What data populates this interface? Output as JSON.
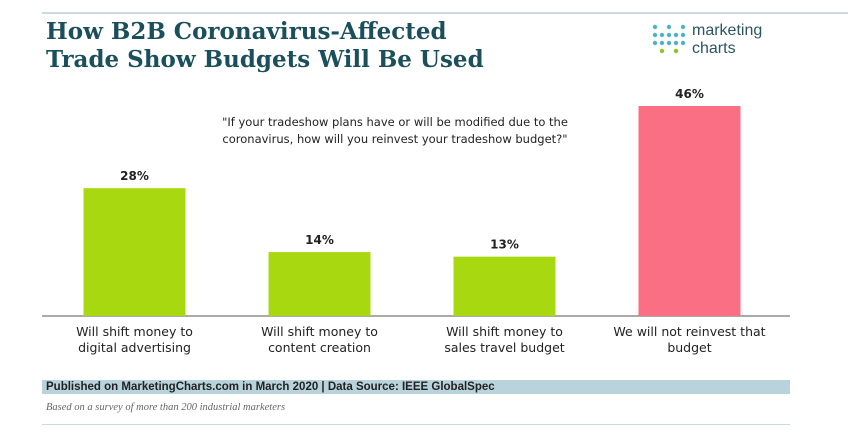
{
  "header": {
    "title_line1": "How B2B Coronavirus-Affected",
    "title_line2": "Trade Show Budgets Will Be Used",
    "logo_line1": "marketing",
    "logo_line2": "charts"
  },
  "question_line1": "\"If your tradeshow plans have or will be modified due to the",
  "question_line2": "coronavirus, how will you reinvest your tradeshow budget?\"",
  "colors": {
    "green": "#a8d80f",
    "pink": "#fb6f85",
    "title": "#1b4f5c"
  },
  "chart_data": {
    "type": "bar",
    "title": "How B2B Coronavirus-Affected Trade Show Budgets Will Be Used",
    "subtitle": "\"If your tradeshow plans have or will be modified due to the coronavirus, how will you reinvest your tradeshow budget?\"",
    "categories": [
      [
        "Will shift money to",
        "digital advertising"
      ],
      [
        "Will shift money to",
        "content creation"
      ],
      [
        "Will shift money to",
        "sales travel budget"
      ],
      [
        "We will not reinvest that",
        "budget"
      ]
    ],
    "values": [
      28,
      14,
      13,
      46
    ],
    "value_labels": [
      "28%",
      "14%",
      "13%",
      "46%"
    ],
    "bar_colors": [
      "#a8d80f",
      "#a8d80f",
      "#a8d80f",
      "#fb6f85"
    ],
    "ylim": [
      0,
      46
    ],
    "grid": false,
    "xlabel": "",
    "ylabel": ""
  },
  "footer": {
    "source": "Published on MarketingCharts.com in March 2020 | Data Source: IEEE GlobalSpec",
    "note": "Based on a survey of more than 200 industrial marketers"
  }
}
